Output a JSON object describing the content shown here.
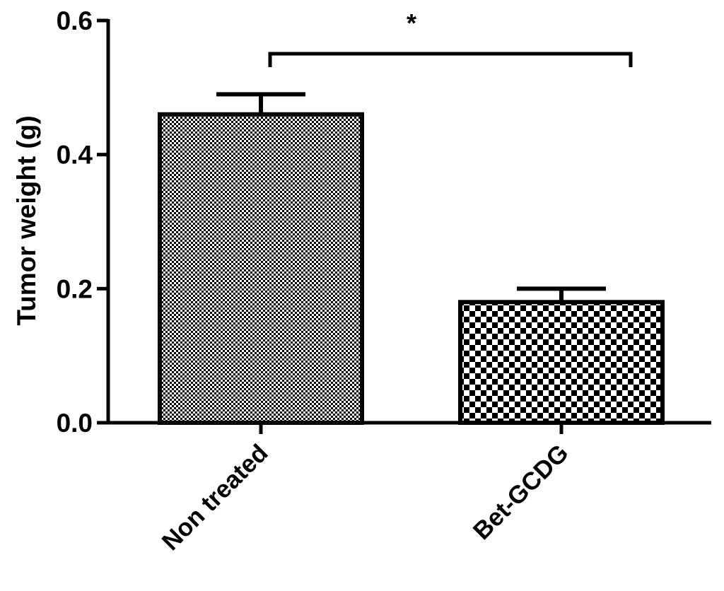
{
  "chart_data": {
    "type": "bar",
    "categories": [
      "Non treated",
      "Bet-GCDG"
    ],
    "values": [
      0.46,
      0.18
    ],
    "error_upper": [
      0.03,
      0.02
    ],
    "ylabel": "Tumor weight (g)",
    "xlabel": "",
    "ylim": [
      0,
      0.6
    ],
    "yticks": [
      0.0,
      0.2,
      0.4,
      0.6
    ],
    "ytick_labels": [
      "0.0",
      "0.2",
      "0.4",
      "0.6"
    ],
    "bar_patterns": [
      "fine-checker",
      "coarse-checker"
    ],
    "grid": false,
    "legend": "none",
    "significance": {
      "between": [
        "Non treated",
        "Bet-GCDG"
      ],
      "label": "*"
    }
  },
  "colors": {
    "ink": "#000000",
    "background": "#ffffff"
  }
}
